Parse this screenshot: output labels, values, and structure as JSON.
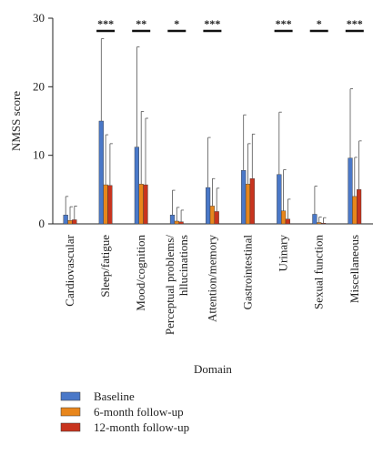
{
  "chart_data": {
    "type": "bar",
    "xlabel": "Domain",
    "ylabel": "NMSS score",
    "ylim": [
      0,
      30
    ],
    "yticks": [
      0,
      10,
      20,
      30
    ],
    "grid": false,
    "legend_position": "bottom-left",
    "categories": [
      "Cardiovascular",
      "Sleep/fatigue",
      "Mood/cognition",
      "Perceptual problems/\nhllucinations",
      "Attention/memory",
      "Gastrointestinal",
      "Urinary",
      "Sexual function",
      "Miscellaneous"
    ],
    "series": [
      {
        "name": "Baseline",
        "color": "#4a78c8",
        "values": [
          1.3,
          15.0,
          11.2,
          1.3,
          5.3,
          7.8,
          7.2,
          1.4,
          9.6
        ],
        "error_upper": [
          4.0,
          27.0,
          25.8,
          4.9,
          12.6,
          15.9,
          16.3,
          5.5,
          19.7
        ]
      },
      {
        "name": "6-month follow-up",
        "color": "#e8861c",
        "values": [
          0.5,
          5.7,
          5.8,
          0.4,
          2.6,
          5.8,
          1.9,
          0.2,
          4.0
        ],
        "error_upper": [
          2.5,
          13.0,
          16.4,
          2.4,
          6.6,
          11.7,
          7.9,
          1.0,
          9.7
        ]
      },
      {
        "name": "12-month follow-up",
        "color": "#c8341e",
        "values": [
          0.6,
          5.6,
          5.7,
          0.3,
          1.8,
          6.6,
          0.7,
          0.1,
          5.0
        ],
        "error_upper": [
          2.6,
          11.7,
          15.4,
          2.0,
          5.2,
          13.1,
          3.6,
          0.9,
          12.1
        ]
      }
    ],
    "significance": [
      "",
      "***",
      "**",
      "*",
      "***",
      "",
      "***",
      "*",
      "***"
    ]
  }
}
